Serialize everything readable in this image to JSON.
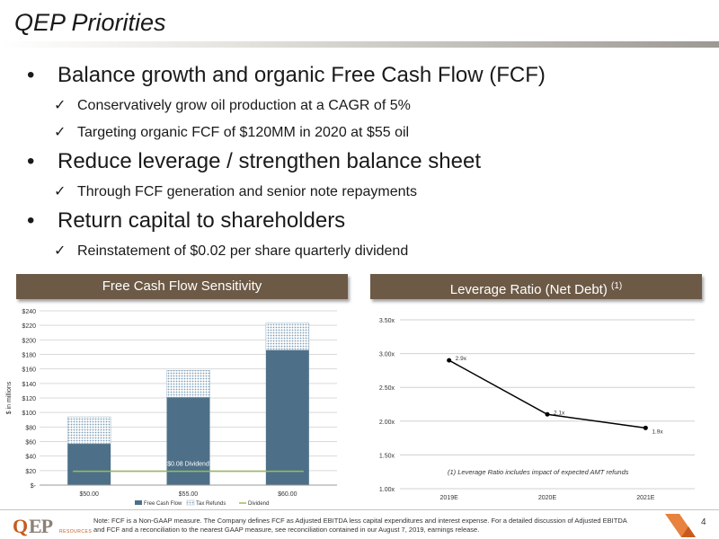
{
  "slide": {
    "title": "QEP Priorities",
    "bullets": [
      {
        "text": "Balance growth and organic Free Cash Flow (FCF)",
        "subs": [
          "Conservatively grow oil production at a CAGR of 5%",
          "Targeting organic FCF of $120MM in 2020 at $55 oil"
        ]
      },
      {
        "text": "Reduce leverage / strengthen balance sheet",
        "subs": [
          "Through FCF generation and senior note repayments"
        ]
      },
      {
        "text": "Return capital to shareholders",
        "subs": [
          "Reinstatement of $0.02 per share quarterly dividend"
        ]
      }
    ],
    "bullet_char": "•",
    "check_char": "✓"
  },
  "panels": {
    "fcf_title": "Free Cash Flow Sensitivity",
    "leverage_title": "Leverage Ratio (Net Debt)",
    "leverage_superscript": "(1)"
  },
  "chart_data": [
    {
      "type": "bar",
      "title": "Free Cash Flow Sensitivity",
      "ylabel": "$ in millions",
      "categories": [
        "$50.00",
        "$55.00",
        "$60.00"
      ],
      "series": [
        {
          "name": "Free Cash Flow",
          "values": [
            57,
            121,
            186
          ],
          "color": "#4d7088"
        },
        {
          "name": "Tax Refunds",
          "values": [
            37,
            37,
            37
          ],
          "color": "#a9c1d3"
        }
      ],
      "dividend": {
        "name": "Dividend",
        "value": 19,
        "label": "$0.08 Dividend",
        "color": "#9bbb59"
      },
      "ylim": [
        0,
        240
      ],
      "yticks": [
        0,
        20,
        40,
        60,
        80,
        100,
        120,
        140,
        160,
        180,
        200,
        220,
        240
      ],
      "ytick_labels": [
        "$-",
        "$20",
        "$40",
        "$60",
        "$80",
        "$100",
        "$120",
        "$140",
        "$160",
        "$180",
        "$200",
        "$220",
        "$240"
      ],
      "grid": true
    },
    {
      "type": "line",
      "title": "Leverage Ratio (Net Debt)",
      "x": [
        "2019E",
        "2020E",
        "2021E"
      ],
      "values": [
        2.9,
        2.1,
        1.9
      ],
      "point_labels": [
        "2.9x",
        "2.1x",
        "1.9x"
      ],
      "ylim": [
        1.0,
        3.5
      ],
      "yticks": [
        1.0,
        1.5,
        2.0,
        2.5,
        3.0,
        3.5
      ],
      "ytick_labels": [
        "1.00x",
        "1.50x",
        "2.00x",
        "2.50x",
        "3.00x",
        "3.50x"
      ],
      "annotation": "(1) Leverage Ratio includes impact of expected AMT refunds",
      "grid": true
    }
  ],
  "footer": {
    "logo_text_q": "Q",
    "logo_text_ep": "EP",
    "logo_sub": "RESOURCES",
    "note": "Note: FCF is a Non-GAAP measure. The Company defines FCF as Adjusted EBITDA less capital expenditures and interest expense. For a detailed discussion of Adjusted EBITDA and FCF and a reconciliation to the nearest GAAP measure, see reconciliation contained in our August 7, 2019, earnings release.",
    "page_number": "4"
  },
  "colors": {
    "accent": "#6d5a46",
    "brand_orange": "#c85a1e",
    "bar": "#4d7088",
    "dividend": "#9bbb59"
  }
}
